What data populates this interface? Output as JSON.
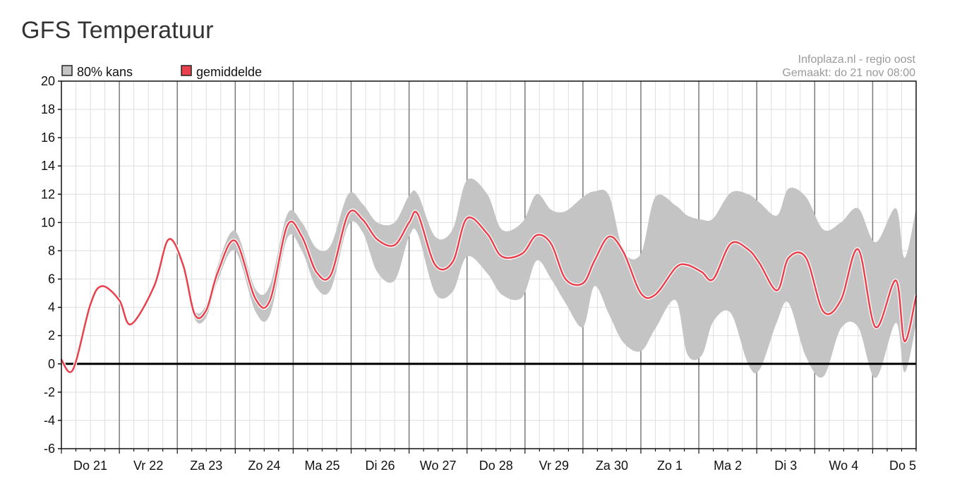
{
  "page_title": "GFS Temperatuur",
  "chart_data": {
    "type": "line",
    "title": "GFS Temperatuur",
    "credit": [
      "Infoplaza.nl - regio oost",
      "Gemaakt: do 21 nov 08:00"
    ],
    "legend": [
      {
        "label": "80% kans",
        "color": "#c4c4c4"
      },
      {
        "label": "gemiddelde",
        "color": "#e8414d"
      }
    ],
    "legend_position": "top-left",
    "ylim": [
      -6,
      20
    ],
    "yticks": [
      "20",
      "18",
      "16",
      "14",
      "12",
      "10",
      "8",
      "6",
      "4",
      "2",
      "0",
      "-2",
      "-4",
      "-6"
    ],
    "ytick_values": [
      20,
      18,
      16,
      14,
      12,
      10,
      8,
      6,
      4,
      2,
      0,
      -2,
      -4,
      -6
    ],
    "xlim": [
      0,
      14.75
    ],
    "categories": [
      "Do 21",
      "Vr 22",
      "Za 23",
      "Zo 24",
      "Ma 25",
      "Di 26",
      "Wo 27",
      "Do 28",
      "Vr 29",
      "Za 30",
      "Zo 1",
      "Ma 2",
      "Di 3",
      "Wo 4",
      "Do 5"
    ],
    "grid": true,
    "series": [
      {
        "name": "gemiddelde",
        "x": [
          0,
          0.2,
          0.5,
          0.7,
          1.0,
          1.2,
          1.6,
          1.85,
          2.1,
          2.3,
          2.5,
          2.7,
          3.0,
          3.35,
          3.6,
          3.9,
          4.15,
          4.4,
          4.65,
          4.95,
          5.2,
          5.45,
          5.75,
          6.0,
          6.15,
          6.45,
          6.75,
          7.0,
          7.35,
          7.6,
          7.95,
          8.2,
          8.45,
          8.7,
          9.0,
          9.2,
          9.45,
          9.7,
          10.0,
          10.25,
          10.6,
          10.8,
          11.05,
          11.25,
          11.55,
          11.85,
          12.05,
          12.35,
          12.55,
          12.85,
          13.15,
          13.45,
          13.75,
          14.05,
          14.4,
          14.55,
          14.75
        ],
        "y": [
          0.3,
          -0.4,
          4.2,
          5.5,
          4.5,
          2.8,
          5.5,
          8.8,
          7.0,
          3.5,
          3.8,
          6.5,
          8.7,
          4.6,
          4.5,
          9.8,
          9.0,
          6.5,
          6.3,
          10.6,
          10.2,
          8.8,
          8.4,
          10.0,
          10.6,
          7.0,
          7.2,
          10.3,
          9.2,
          7.6,
          7.8,
          9.1,
          8.5,
          6.0,
          5.7,
          7.3,
          9.0,
          7.9,
          5.0,
          4.9,
          6.8,
          7.0,
          6.5,
          6.0,
          8.5,
          8.1,
          7.1,
          5.2,
          7.5,
          7.5,
          3.7,
          4.5,
          8.1,
          2.6,
          5.9,
          1.6,
          4.8
        ]
      }
    ],
    "band": {
      "name": "80% kans",
      "x": [
        0,
        0.2,
        0.5,
        0.7,
        1.0,
        1.2,
        1.6,
        1.85,
        2.1,
        2.3,
        2.5,
        2.7,
        3.0,
        3.35,
        3.6,
        3.9,
        4.15,
        4.4,
        4.65,
        4.95,
        5.2,
        5.45,
        5.75,
        6.0,
        6.15,
        6.45,
        6.75,
        7.0,
        7.35,
        7.6,
        7.95,
        8.2,
        8.45,
        8.7,
        9.0,
        9.2,
        9.45,
        9.7,
        10.0,
        10.25,
        10.6,
        10.8,
        11.05,
        11.25,
        11.55,
        11.85,
        12.05,
        12.35,
        12.55,
        12.85,
        13.15,
        13.45,
        13.75,
        14.05,
        14.4,
        14.55,
        14.75
      ],
      "upper": [
        0.4,
        -0.3,
        4.3,
        5.6,
        4.6,
        2.9,
        5.6,
        8.9,
        7.2,
        3.8,
        4.2,
        7.0,
        9.4,
        5.3,
        5.6,
        10.6,
        10.0,
        8.2,
        8.4,
        12.0,
        11.3,
        10.0,
        10.0,
        11.9,
        12.0,
        9.0,
        9.5,
        13.0,
        12.0,
        9.5,
        10.0,
        12.0,
        10.9,
        10.8,
        11.8,
        12.2,
        11.9,
        8.0,
        7.8,
        11.8,
        11.2,
        10.5,
        10.2,
        10.3,
        12.1,
        12.0,
        11.4,
        10.5,
        12.4,
        11.8,
        9.5,
        10.0,
        11.0,
        8.6,
        11.0,
        7.5,
        11.0
      ],
      "lower": [
        0.2,
        -0.5,
        4.1,
        5.4,
        4.4,
        2.7,
        5.4,
        8.7,
        6.8,
        3.2,
        3.3,
        5.9,
        8.0,
        3.7,
        3.5,
        8.9,
        8.0,
        5.4,
        5.3,
        9.8,
        9.3,
        6.5,
        5.9,
        9.0,
        9.2,
        5.0,
        5.1,
        7.6,
        6.4,
        4.9,
        4.7,
        7.3,
        6.0,
        4.3,
        2.6,
        5.5,
        3.5,
        1.5,
        0.9,
        2.5,
        4.5,
        0.7,
        0.6,
        3.0,
        3.6,
        0.0,
        -0.4,
        3.0,
        4.3,
        0.5,
        -0.9,
        2.5,
        2.6,
        -1.0,
        2.9,
        -0.6,
        2.8
      ]
    }
  }
}
